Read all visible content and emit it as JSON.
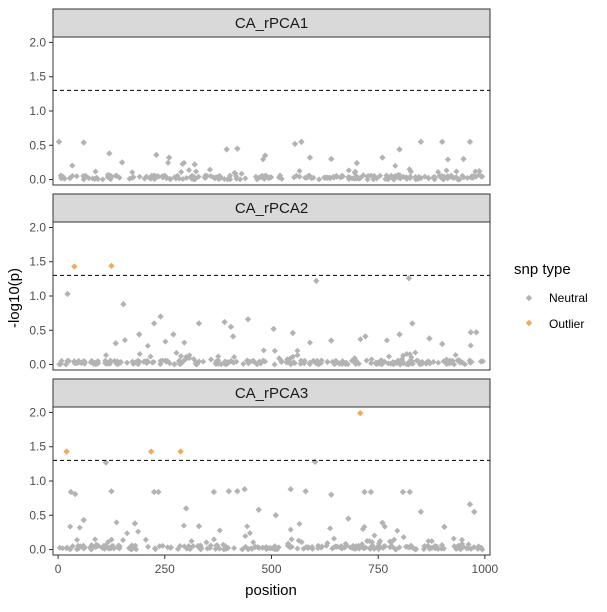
{
  "chart_data": {
    "type": "scatter",
    "xlabel": "position",
    "ylabel": "-log10(p)",
    "xlim": [
      -12,
      1012
    ],
    "ylim": [
      -0.08,
      2.08
    ],
    "x_ticks": [
      0,
      250,
      500,
      750,
      1000
    ],
    "y_ticks": [
      0.0,
      0.5,
      1.0,
      1.5,
      2.0
    ],
    "y_tick_labels": [
      "0.0",
      "0.5",
      "1.0",
      "1.5",
      "2.0"
    ],
    "threshold": 1.301,
    "grid": false,
    "legend": {
      "title": "snp type",
      "placement": "right",
      "entries": [
        {
          "name": "Neutral",
          "color": "#b3b3b3"
        },
        {
          "name": "Outlier",
          "color": "#f5a85a"
        }
      ]
    },
    "panels": [
      {
        "title": "CA_rPCA1",
        "outliers": [],
        "notable_neutral": [
          [
            2,
            0.55
          ],
          [
            60,
            0.54
          ],
          [
            120,
            0.38
          ],
          [
            230,
            0.36
          ],
          [
            260,
            0.32
          ],
          [
            395,
            0.44
          ],
          [
            420,
            0.45
          ],
          [
            485,
            0.35
          ],
          [
            555,
            0.52
          ],
          [
            570,
            0.55
          ],
          [
            590,
            0.32
          ],
          [
            640,
            0.3
          ],
          [
            760,
            0.32
          ],
          [
            800,
            0.44
          ],
          [
            850,
            0.55
          ],
          [
            900,
            0.55
          ],
          [
            950,
            0.3
          ],
          [
            965,
            0.55
          ],
          [
            150,
            0.25
          ],
          [
            320,
            0.22
          ],
          [
            700,
            0.24
          ]
        ],
        "neutral_max": 0.55
      },
      {
        "title": "CA_rPCA2",
        "outliers": [
          [
            38,
            1.43
          ],
          [
            125,
            1.44
          ]
        ],
        "notable_neutral": [
          [
            22,
            1.03
          ],
          [
            153,
            0.88
          ],
          [
            605,
            1.22
          ],
          [
            822,
            1.26
          ],
          [
            240,
            0.7
          ],
          [
            225,
            0.6
          ],
          [
            330,
            0.6
          ],
          [
            390,
            0.62
          ],
          [
            405,
            0.55
          ],
          [
            445,
            0.66
          ],
          [
            830,
            0.6
          ],
          [
            967,
            0.47
          ],
          [
            980,
            0.47
          ],
          [
            505,
            0.52
          ],
          [
            550,
            0.46
          ],
          [
            720,
            0.41
          ],
          [
            270,
            0.44
          ],
          [
            190,
            0.44
          ],
          [
            410,
            0.41
          ],
          [
            870,
            0.38
          ],
          [
            900,
            0.3
          ],
          [
            800,
            0.44
          ],
          [
            640,
            0.35
          ],
          [
            135,
            0.31
          ]
        ],
        "neutral_max": 1.26
      },
      {
        "title": "CA_rPCA3",
        "outliers": [
          [
            20,
            1.43
          ],
          [
            218,
            1.43
          ],
          [
            287,
            1.43
          ],
          [
            708,
            1.99
          ]
        ],
        "notable_neutral": [
          [
            112,
            1.27
          ],
          [
            602,
            1.28
          ],
          [
            30,
            0.84
          ],
          [
            40,
            0.81
          ],
          [
            125,
            0.85
          ],
          [
            225,
            0.84
          ],
          [
            235,
            0.84
          ],
          [
            365,
            0.84
          ],
          [
            400,
            0.85
          ],
          [
            420,
            0.85
          ],
          [
            437,
            0.88
          ],
          [
            545,
            0.88
          ],
          [
            580,
            0.85
          ],
          [
            640,
            0.8
          ],
          [
            718,
            0.84
          ],
          [
            733,
            0.84
          ],
          [
            808,
            0.84
          ],
          [
            824,
            0.84
          ],
          [
            965,
            0.66
          ],
          [
            975,
            0.55
          ],
          [
            300,
            0.6
          ],
          [
            470,
            0.58
          ],
          [
            60,
            0.43
          ],
          [
            850,
            0.55
          ],
          [
            180,
            0.38
          ],
          [
            510,
            0.5
          ],
          [
            680,
            0.45
          ],
          [
            905,
            0.33
          ],
          [
            330,
            0.34
          ],
          [
            760,
            0.39
          ]
        ],
        "neutral_max": 1.28
      }
    ]
  }
}
